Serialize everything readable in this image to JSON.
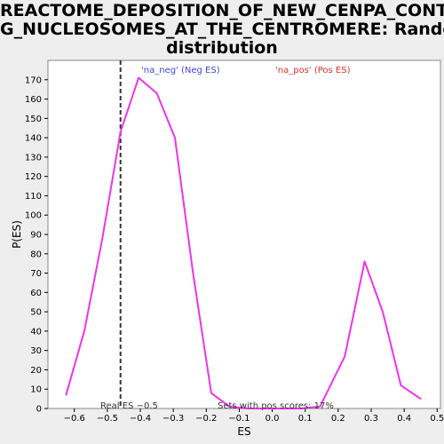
{
  "chart_data": {
    "type": "line",
    "title_line1": "REACTOME_DEPOSITION_OF_NEW_CENPA_CONTAININ",
    "title_line2": "G_NUCLEOSOMES_AT_THE_CENTROMERE: Random ES",
    "title_line3": "distribution",
    "xlabel": "ES",
    "ylabel": "P(ES)",
    "xlim": [
      -0.68,
      0.51
    ],
    "ylim": [
      0,
      180
    ],
    "xticks": [
      -0.6,
      -0.5,
      -0.4,
      -0.3,
      -0.2,
      -0.1,
      0.0,
      0.1,
      0.2,
      0.3,
      0.4,
      0.5
    ],
    "xtick_labels": [
      "−0.6",
      "−0.5",
      "−0.4",
      "−0.3",
      "−0.2",
      "−0.1",
      "0.0",
      "0.1",
      "0.2",
      "0.3",
      "0.4",
      "0.5"
    ],
    "yticks": [
      0,
      10,
      20,
      30,
      40,
      50,
      60,
      70,
      80,
      90,
      100,
      110,
      120,
      130,
      140,
      150,
      160,
      170
    ],
    "series": [
      {
        "color": "#ee33ee",
        "x": [
          -0.625,
          -0.57,
          -0.515,
          -0.46,
          -0.405,
          -0.35,
          -0.295,
          -0.24,
          -0.185,
          -0.13,
          -0.075,
          -0.02,
          0.035,
          0.09,
          0.145,
          0.22,
          0.28,
          0.335,
          0.39,
          0.45
        ],
        "y": [
          7,
          40,
          88,
          143,
          171,
          163,
          140,
          70,
          8,
          1,
          0,
          0,
          0,
          0,
          1,
          27,
          76,
          50,
          12,
          5
        ]
      }
    ],
    "vline": {
      "x": -0.46,
      "label": "Real ES −0.5"
    },
    "legend": [
      {
        "text": "'na_neg' (Neg ES)",
        "color": "#4444dd"
      },
      {
        "text": "'na_pos' (Pos ES)",
        "color": "#dd3333"
      }
    ],
    "annotation": "Sets with pos scores: 17%",
    "plot_bg": "#ffffff",
    "page_bg": "#eeeeee"
  }
}
